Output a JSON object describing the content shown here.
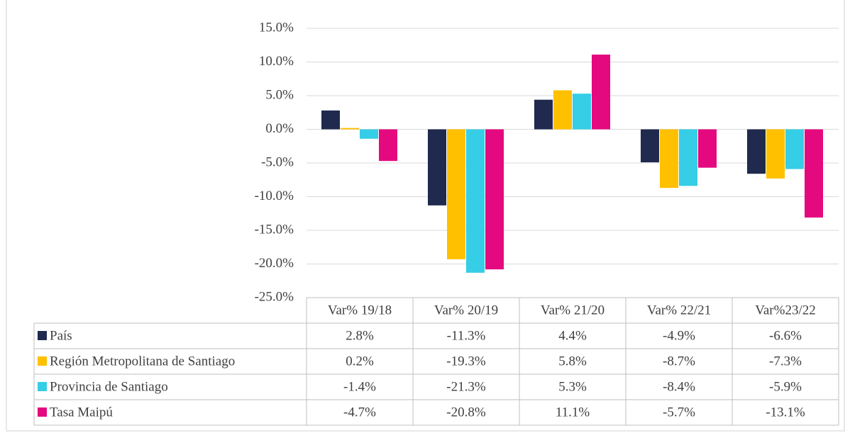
{
  "chart_data": {
    "type": "bar",
    "categories": [
      "Var% 19/18",
      "Var% 20/19",
      "Var% 21/20",
      "Var% 22/21",
      "Var%23/22"
    ],
    "series": [
      {
        "name": "País",
        "color": "#1f2a4e",
        "values": [
          2.8,
          -11.3,
          4.4,
          -4.9,
          -6.6
        ],
        "value_labels": [
          "2.8%",
          "-11.3%",
          "4.4%",
          "-4.9%",
          "-6.6%"
        ]
      },
      {
        "name": "Región Metropolitana de Santiago",
        "color": "#ffc000",
        "values": [
          0.2,
          -19.3,
          5.8,
          -8.7,
          -7.3
        ],
        "value_labels": [
          "0.2%",
          "-19.3%",
          "5.8%",
          "-8.7%",
          "-7.3%"
        ]
      },
      {
        "name": "Provincia de Santiago",
        "color": "#36cde6",
        "values": [
          -1.4,
          -21.3,
          5.3,
          -8.4,
          -5.9
        ],
        "value_labels": [
          "-1.4%",
          "-21.3%",
          "5.3%",
          "-8.4%",
          "-5.9%"
        ]
      },
      {
        "name": "Tasa Maipú",
        "color": "#e5097f",
        "values": [
          -4.7,
          -20.8,
          11.1,
          -5.7,
          -13.1
        ],
        "value_labels": [
          "-4.7%",
          "-20.8%",
          "11.1%",
          "-5.7%",
          "-13.1%"
        ]
      }
    ],
    "ylim": [
      -25,
      15
    ],
    "yticks": [
      {
        "value": -25,
        "label": "-25.0%"
      },
      {
        "value": -20,
        "label": "-20.0%"
      },
      {
        "value": -15,
        "label": "-15.0%"
      },
      {
        "value": -10,
        "label": "-10.0%"
      },
      {
        "value": -5,
        "label": "-5.0%"
      },
      {
        "value": 0,
        "label": "0.0%"
      },
      {
        "value": 5,
        "label": "5.0%"
      },
      {
        "value": 10,
        "label": "10.0%"
      },
      {
        "value": 15,
        "label": "15.0%"
      }
    ],
    "grid": true
  }
}
